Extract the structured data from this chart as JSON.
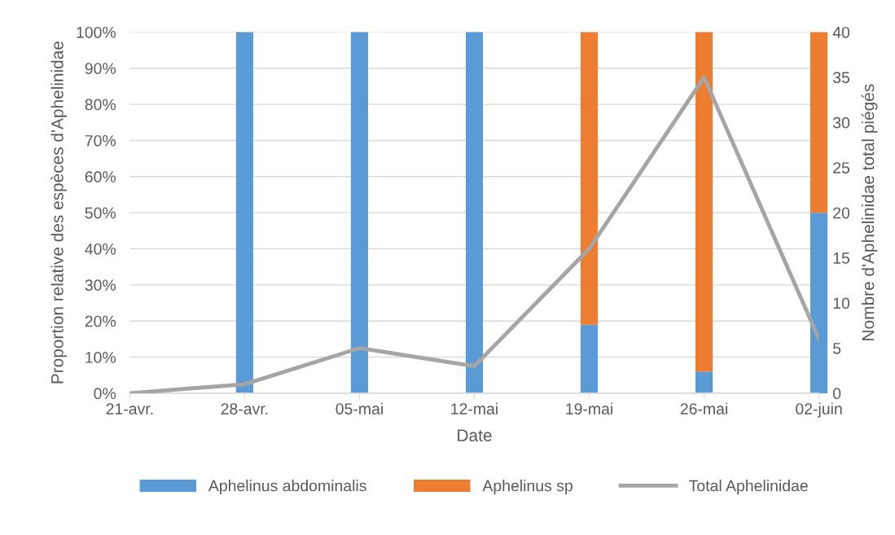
{
  "chart_data": {
    "type": "bar",
    "stacked": true,
    "categories": [
      "21-avr.",
      "28-avr.",
      "05-mai",
      "12-mai",
      "19-mai",
      "26-mai",
      "02-juin"
    ],
    "xlabel": "Date",
    "ylabel": "Proportion relative des espèces d'Aphelinidae",
    "y2label": "Nombre d'Aphelinidae total piégés",
    "series": [
      {
        "name": "Aphelinus abdominalis",
        "color": "#5b9bd5",
        "values": [
          0,
          100,
          100,
          100,
          19,
          6,
          50
        ]
      },
      {
        "name": "Aphelinus sp",
        "color": "#ed7d31",
        "values": [
          0,
          0,
          0,
          0,
          81,
          94,
          50
        ]
      },
      {
        "name": "Total Aphelinidae",
        "type": "line",
        "axis": "y2",
        "color": "#a5a5a5",
        "values": [
          0,
          1,
          5,
          3,
          16,
          35,
          6
        ]
      }
    ],
    "ylim": [
      0,
      100
    ],
    "yticks": [
      {
        "value": 0,
        "label": "0%"
      },
      {
        "value": 10,
        "label": "10%"
      },
      {
        "value": 20,
        "label": "20%"
      },
      {
        "value": 30,
        "label": "30%"
      },
      {
        "value": 40,
        "label": "40%"
      },
      {
        "value": 50,
        "label": "50%"
      },
      {
        "value": 60,
        "label": "60%"
      },
      {
        "value": 70,
        "label": "70%"
      },
      {
        "value": 80,
        "label": "80%"
      },
      {
        "value": 90,
        "label": "90%"
      },
      {
        "value": 100,
        "label": "100%"
      }
    ],
    "y2lim": [
      0,
      40
    ],
    "y2ticks": [
      0,
      5,
      10,
      15,
      20,
      25,
      30,
      35,
      40
    ],
    "grid": "y",
    "legend": "bottom",
    "marker": "none",
    "line_style": "solid"
  }
}
